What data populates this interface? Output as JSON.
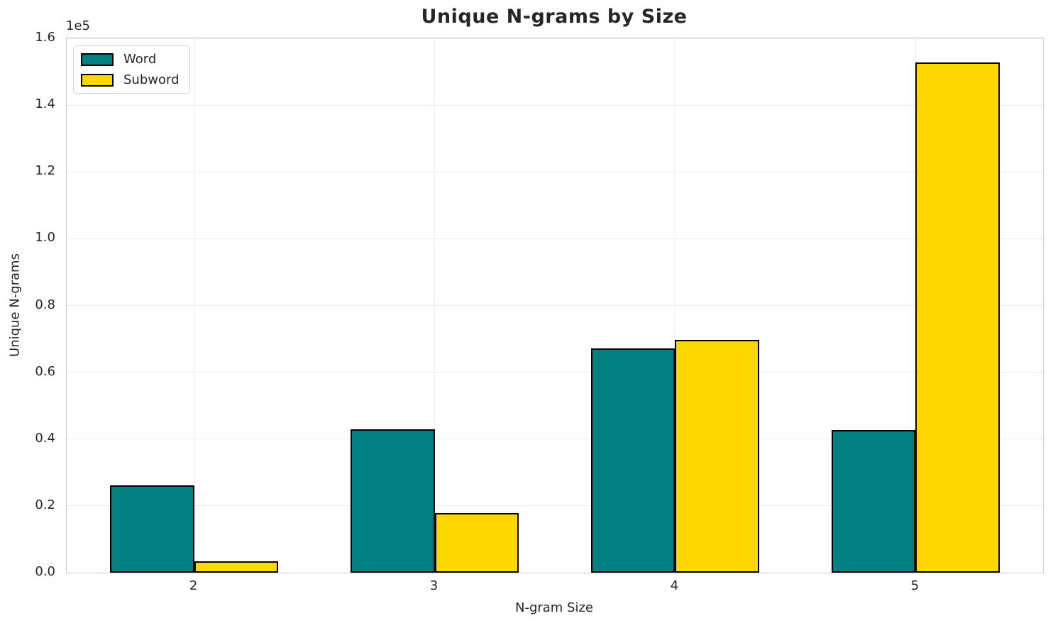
{
  "chart_data": {
    "type": "bar",
    "title": "Unique N-grams by Size",
    "xlabel": "N-gram Size",
    "ylabel": "Unique N-grams",
    "offset_text": "1e5",
    "categories": [
      "2",
      "3",
      "4",
      "5"
    ],
    "series": [
      {
        "name": "Word",
        "color": "#008080",
        "values": [
          26200,
          43000,
          67200,
          42700
        ]
      },
      {
        "name": "Subword",
        "color": "#FFD700",
        "values": [
          3300,
          17900,
          69800,
          152800
        ]
      }
    ],
    "ylim": [
      0,
      160000
    ],
    "xlim": [
      -0.53,
      3.53
    ],
    "bar_width": 0.35,
    "yticks": [
      {
        "value": 0,
        "label": "0.0"
      },
      {
        "value": 20000,
        "label": "0.2"
      },
      {
        "value": 40000,
        "label": "0.4"
      },
      {
        "value": 60000,
        "label": "0.6"
      },
      {
        "value": 80000,
        "label": "0.8"
      },
      {
        "value": 100000,
        "label": "1.0"
      },
      {
        "value": 120000,
        "label": "1.2"
      },
      {
        "value": 140000,
        "label": "1.4"
      },
      {
        "value": 160000,
        "label": "1.6"
      }
    ],
    "grid": true,
    "legend_position": "upper left",
    "bar_edge_color": "#000000",
    "colors": {
      "grid": "#ececec",
      "spine": "#cccccc",
      "text": "#262626",
      "background": "#ffffff"
    }
  }
}
